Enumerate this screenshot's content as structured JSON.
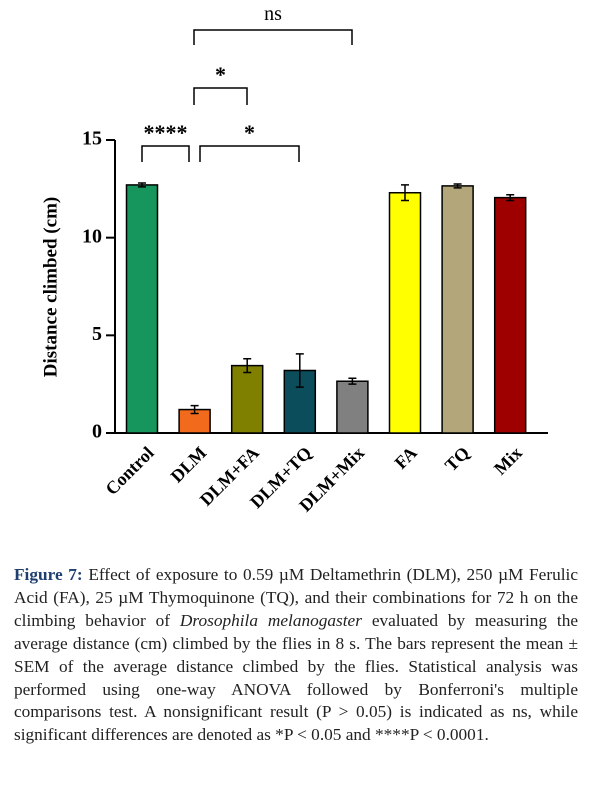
{
  "chart_data": {
    "type": "bar",
    "ylabel": "Distance climbed (cm)",
    "categories": [
      "Control",
      "DLM",
      "DLM+FA",
      "DLM+TQ",
      "DLM+Mix",
      "FA",
      "TQ",
      "Mix"
    ],
    "values": [
      12.7,
      1.2,
      3.45,
      3.2,
      2.65,
      12.3,
      12.65,
      12.05
    ],
    "errors": [
      0.1,
      0.2,
      0.35,
      0.85,
      0.15,
      0.4,
      0.1,
      0.15
    ],
    "colors": [
      "#16965c",
      "#f26a1b",
      "#7f7f00",
      "#0c4d5c",
      "#808080",
      "#ffff00",
      "#b3a67a",
      "#9e0000"
    ],
    "ylim": [
      0,
      15
    ],
    "yticks": [
      0,
      5,
      10,
      15
    ],
    "annotations": [
      {
        "text": "ns"
      },
      {
        "text": "*"
      },
      {
        "text": "****"
      },
      {
        "text": "*"
      }
    ]
  },
  "caption": {
    "label": "Figure 7:",
    "text1": "Effect of exposure to 0.59 µM Deltamethrin (DLM), 250 µM Ferulic Acid (FA), 25 µM Thymoquinone (TQ), and their combinations for 72 h on the climbing behavior of",
    "italic": "Drosophila melanogaster",
    "text2": "evaluated by measuring the average distance (cm) climbed by the flies in 8 s. The bars represent the mean ± SEM of the average distance climbed by the flies. Statistical analysis was performed using one-way ANOVA followed by Bonferroni's multiple comparisons test. A nonsignificant result (P > 0.05) is indicated as ns, while significant differences are denoted as *P < 0.05 and ****P < 0.0001."
  }
}
